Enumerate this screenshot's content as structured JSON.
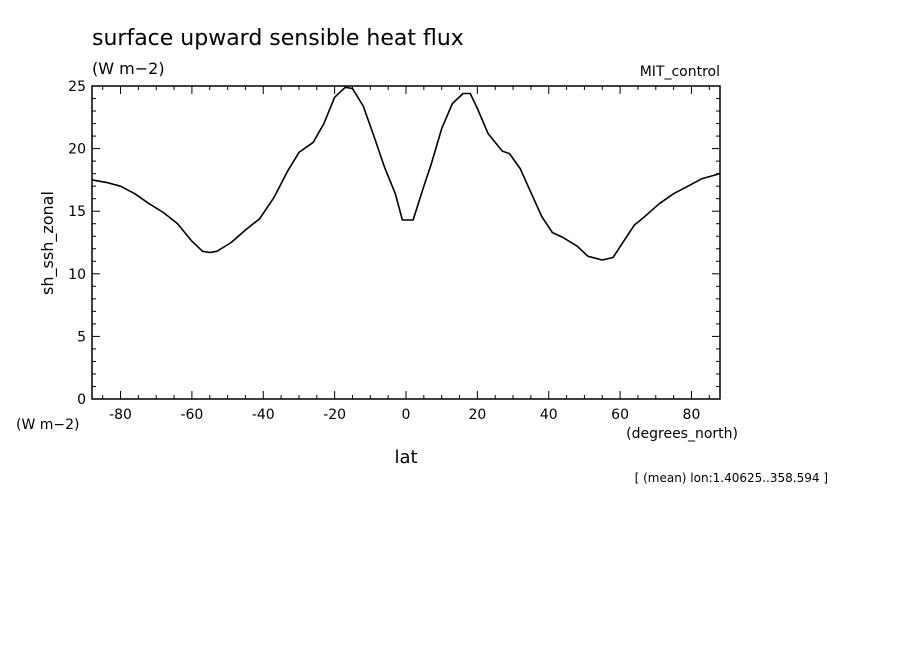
{
  "chart_data": {
    "type": "line",
    "title": "surface upward sensible heat flux",
    "title_units": "(W m−2)",
    "dataset": "MIT_control",
    "ylabel": "sh_ssh_zonal",
    "yunits": "(W m−2)",
    "xlabel": "lat",
    "xunits": "(degrees_north)",
    "footnote": "[ (mean) lon:1.40625..358.594 ]",
    "xlim": [
      -88,
      88
    ],
    "ylim": [
      0,
      25
    ],
    "xticks": [
      -80,
      -60,
      -40,
      -20,
      0,
      20,
      40,
      60,
      80
    ],
    "xtick_labels": [
      "-80",
      "-60",
      "-40",
      "-20",
      "0",
      "20",
      "40",
      "60",
      "80"
    ],
    "yticks": [
      0,
      5,
      10,
      15,
      20,
      25
    ],
    "ytick_labels": [
      "0",
      "5",
      "10",
      "15",
      "20",
      "25"
    ],
    "grid": false,
    "line_color": "#000000",
    "series": [
      {
        "x": [
          -88,
          -84,
          -80,
          -76,
          -72,
          -68,
          -64,
          -60,
          -57,
          -55,
          -53,
          -49,
          -45,
          -41,
          -37,
          -33,
          -30,
          -26,
          -23,
          -20,
          -17,
          -15,
          -12,
          -9,
          -6,
          -3,
          -1,
          2,
          5,
          7,
          10,
          13,
          16,
          18,
          20,
          23,
          27,
          29,
          32,
          35,
          38,
          41,
          44,
          48,
          51,
          55,
          58,
          61,
          64,
          67,
          71,
          75,
          79,
          83,
          88
        ],
        "y": [
          17.5,
          17.3,
          17.0,
          16.4,
          15.6,
          14.9,
          14.0,
          12.6,
          11.8,
          11.7,
          11.8,
          12.5,
          13.5,
          14.4,
          16.1,
          18.3,
          19.7,
          20.5,
          22.0,
          24.1,
          24.9,
          24.8,
          23.4,
          21.0,
          18.5,
          16.4,
          14.3,
          14.3,
          17.0,
          18.7,
          21.6,
          23.6,
          24.4,
          24.4,
          23.2,
          21.2,
          19.8,
          19.6,
          18.4,
          16.5,
          14.6,
          13.3,
          12.9,
          12.2,
          11.4,
          11.1,
          11.3,
          12.6,
          13.9,
          14.6,
          15.6,
          16.4,
          17.0,
          17.6,
          18.0
        ]
      }
    ]
  }
}
